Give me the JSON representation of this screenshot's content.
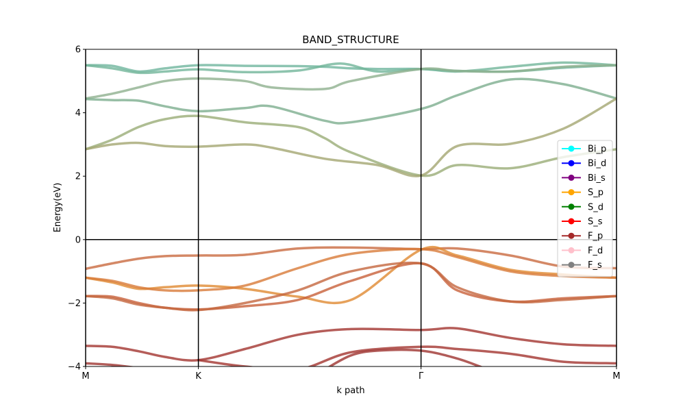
{
  "chart_data": {
    "type": "line",
    "title": "BAND_STRUCTURE",
    "xlabel": "k path",
    "ylabel": "Energy(eV)",
    "ylim": [
      -4,
      6
    ],
    "xlim": [
      0,
      1
    ],
    "y_ticks": [
      -4,
      -2,
      0,
      2,
      4,
      6
    ],
    "y_tick_labels": [
      "−4",
      "−2",
      "0",
      "2",
      "4",
      "6"
    ],
    "k_points": [
      {
        "label": "M",
        "x": 0.0
      },
      {
        "label": "K",
        "x": 0.2124
      },
      {
        "label": "Γ",
        "x": 0.6318
      },
      {
        "label": "M",
        "x": 1.0
      }
    ],
    "fermi_level": 0,
    "legend_position": "right",
    "legend": [
      {
        "name": "Bi_p",
        "color": "#00ffff"
      },
      {
        "name": "Bi_d",
        "color": "#0000ff"
      },
      {
        "name": "Bi_s",
        "color": "#800080"
      },
      {
        "name": "S_p",
        "color": "#ffa500"
      },
      {
        "name": "S_d",
        "color": "#008000"
      },
      {
        "name": "S_s",
        "color": "#ff0000"
      },
      {
        "name": "F_p",
        "color": "#a52a2a"
      },
      {
        "name": "F_d",
        "color": "#ffc0cb"
      },
      {
        "name": "F_s",
        "color": "#808080"
      }
    ],
    "series": [
      {
        "color": "#6fb59d",
        "x": [
          0,
          0.05,
          0.1,
          0.15,
          0.2124,
          0.3,
          0.4,
          0.45,
          0.5,
          0.55,
          0.6318,
          0.7,
          0.8,
          0.9,
          1.0
        ],
        "y": [
          5.5,
          5.48,
          5.3,
          5.4,
          5.5,
          5.48,
          5.47,
          5.45,
          5.4,
          5.38,
          5.38,
          5.32,
          5.3,
          5.42,
          5.5
        ]
      },
      {
        "color": "#72b59a",
        "x": [
          0,
          0.05,
          0.1,
          0.15,
          0.2124,
          0.3,
          0.4,
          0.48,
          0.55,
          0.6318,
          0.7,
          0.8,
          0.9,
          1.0
        ],
        "y": [
          5.5,
          5.4,
          5.26,
          5.3,
          5.37,
          5.28,
          5.33,
          5.55,
          5.3,
          5.38,
          5.3,
          5.45,
          5.58,
          5.5
        ]
      },
      {
        "color": "#8fb08f",
        "x": [
          0,
          0.05,
          0.1,
          0.15,
          0.2124,
          0.3,
          0.35,
          0.45,
          0.5,
          0.6318,
          0.7,
          0.8,
          0.9,
          1.0
        ],
        "y": [
          4.45,
          4.6,
          4.8,
          5.0,
          5.08,
          5.0,
          4.8,
          4.75,
          5.0,
          5.38,
          5.32,
          5.3,
          5.45,
          5.5
        ]
      },
      {
        "color": "#7dae8e",
        "x": [
          0,
          0.05,
          0.1,
          0.15,
          0.2124,
          0.3,
          0.35,
          0.45,
          0.5,
          0.6318,
          0.7,
          0.8,
          0.9,
          1.0
        ],
        "y": [
          4.43,
          4.4,
          4.38,
          4.2,
          4.05,
          4.15,
          4.2,
          3.75,
          3.7,
          4.12,
          4.55,
          5.05,
          4.9,
          4.45
        ]
      },
      {
        "color": "#9aad77",
        "x": [
          0,
          0.05,
          0.1,
          0.15,
          0.2124,
          0.3,
          0.4,
          0.45,
          0.5,
          0.6318,
          0.7,
          0.8,
          0.9,
          1.0
        ],
        "y": [
          2.85,
          3.15,
          3.55,
          3.8,
          3.9,
          3.7,
          3.55,
          3.2,
          2.75,
          2.02,
          2.35,
          2.25,
          2.6,
          2.85
        ]
      },
      {
        "color": "#a4a672",
        "x": [
          0,
          0.05,
          0.1,
          0.15,
          0.2124,
          0.3,
          0.35,
          0.45,
          0.55,
          0.6318,
          0.7,
          0.8,
          0.9,
          1.0
        ],
        "y": [
          2.85,
          3.0,
          3.05,
          2.95,
          2.93,
          3.0,
          2.9,
          2.55,
          2.35,
          2.02,
          2.95,
          3.02,
          3.5,
          4.45
        ]
      },
      {
        "color": "#c96a40",
        "x": [
          0,
          0.05,
          0.1,
          0.15,
          0.2124,
          0.3,
          0.4,
          0.5,
          0.6318,
          0.7,
          0.8,
          0.9,
          1.0
        ],
        "y": [
          -0.92,
          -0.75,
          -0.6,
          -0.52,
          -0.5,
          -0.48,
          -0.28,
          -0.25,
          -0.3,
          -0.28,
          -0.5,
          -0.85,
          -0.9
        ]
      },
      {
        "color": "#e08a32",
        "x": [
          0,
          0.05,
          0.1,
          0.15,
          0.2124,
          0.3,
          0.4,
          0.5,
          0.6318,
          0.7,
          0.8,
          0.9,
          1.0
        ],
        "y": [
          -1.2,
          -1.35,
          -1.55,
          -1.5,
          -1.45,
          -1.55,
          -1.8,
          -1.9,
          -0.32,
          -0.5,
          -0.95,
          -1.1,
          -1.2
        ]
      },
      {
        "color": "#d87a38",
        "x": [
          0,
          0.05,
          0.1,
          0.15,
          0.2124,
          0.3,
          0.4,
          0.5,
          0.6318,
          0.7,
          0.8,
          0.9,
          1.0
        ],
        "y": [
          -1.2,
          -1.3,
          -1.5,
          -1.6,
          -1.6,
          -1.45,
          -0.9,
          -0.45,
          -0.3,
          -0.55,
          -1.0,
          -1.15,
          -1.2
        ]
      },
      {
        "color": "#c8603a",
        "x": [
          0,
          0.05,
          0.1,
          0.15,
          0.2124,
          0.3,
          0.4,
          0.5,
          0.6318,
          0.7,
          0.8,
          0.9,
          1.0
        ],
        "y": [
          -1.78,
          -1.8,
          -2.0,
          -2.15,
          -2.2,
          -2.1,
          -1.9,
          -1.3,
          -0.75,
          -1.6,
          -1.95,
          -1.85,
          -1.78
        ]
      },
      {
        "color": "#c4663e",
        "x": [
          0,
          0.05,
          0.1,
          0.15,
          0.2124,
          0.3,
          0.4,
          0.5,
          0.6318,
          0.7,
          0.8,
          0.9,
          1.0
        ],
        "y": [
          -1.78,
          -1.85,
          -2.05,
          -2.15,
          -2.22,
          -2.0,
          -1.6,
          -1.0,
          -0.75,
          -1.5,
          -1.95,
          -1.9,
          -1.78
        ]
      },
      {
        "color": "#a3342f",
        "x": [
          0,
          0.05,
          0.1,
          0.15,
          0.2124,
          0.3,
          0.4,
          0.5,
          0.6318,
          0.7,
          0.8,
          0.9,
          1.0
        ],
        "y": [
          -3.35,
          -3.38,
          -3.52,
          -3.7,
          -3.8,
          -3.45,
          -3.0,
          -2.82,
          -2.85,
          -2.8,
          -3.1,
          -3.3,
          -3.35
        ]
      },
      {
        "color": "#a3342f",
        "x": [
          0.2124,
          0.3,
          0.4,
          0.5,
          0.6318,
          0.7,
          0.8,
          0.9,
          1.0
        ],
        "y": [
          -3.8,
          -4.0,
          -4.1,
          -3.55,
          -3.38,
          -3.45,
          -3.6,
          -3.85,
          -3.9
        ]
      },
      {
        "color": "#9e3330",
        "x": [
          0.45,
          0.5,
          0.55,
          0.6318,
          0.7,
          0.75
        ],
        "y": [
          -4.1,
          -3.65,
          -3.5,
          -3.5,
          -3.75,
          -4.05
        ]
      },
      {
        "color": "#9e3330",
        "x": [
          0,
          0.05,
          0.1
        ],
        "y": [
          -3.9,
          -3.95,
          -4.05
        ]
      }
    ]
  }
}
